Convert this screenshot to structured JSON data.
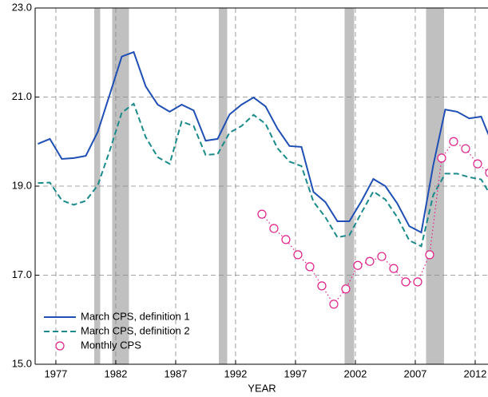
{
  "chart_data": {
    "type": "line",
    "xlabel": "YEAR",
    "xlim": [
      1975.27,
      2013.07
    ],
    "ylim": [
      15.0,
      23.0
    ],
    "xticks": [
      1977,
      1982,
      1987,
      1992,
      1997,
      2002,
      2007,
      2012
    ],
    "yticks": [
      {
        "value": 15.0,
        "label": "15.0"
      },
      {
        "value": 17.0,
        "label": "17.0"
      },
      {
        "value": 19.0,
        "label": "19.0"
      },
      {
        "value": 21.0,
        "label": "21.0"
      },
      {
        "value": 23.0,
        "label": "23.0"
      }
    ],
    "grid": true,
    "legend": "lower left",
    "shaded_periods": [
      [
        1980.2,
        1980.7
      ],
      [
        1981.7,
        1983.1
      ],
      [
        1990.6,
        1991.3
      ],
      [
        2001.1,
        2001.9
      ],
      [
        2007.9,
        2009.4
      ]
    ],
    "shade_color": "#c0c0c0",
    "series": [
      {
        "name": "March CPS, definition 1",
        "color": "#1f4fb4",
        "style": "solid",
        "marker": "none",
        "x": [
          1975.5,
          1976.5,
          1977.5,
          1978.5,
          1979.5,
          1980.5,
          1981.5,
          1982.5,
          1983.5,
          1984.5,
          1985.5,
          1986.5,
          1987.5,
          1988.5,
          1989.5,
          1990.5,
          1991.5,
          1992.5,
          1993.5,
          1994.5,
          1995.5,
          1996.5,
          1997.5,
          1998.5,
          1999.5,
          2000.5,
          2001.5,
          2002.5,
          2003.5,
          2004.5,
          2005.5,
          2006.5,
          2007.5,
          2008.5,
          2009.5,
          2010.5,
          2011.5,
          2012.5,
          2013.5
        ],
        "values": [
          19.95,
          20.06,
          19.61,
          19.63,
          19.68,
          20.22,
          21.06,
          21.91,
          22.01,
          21.24,
          20.83,
          20.67,
          20.83,
          20.7,
          20.02,
          20.06,
          20.61,
          20.83,
          20.99,
          20.79,
          20.29,
          19.9,
          19.88,
          18.87,
          18.64,
          18.21,
          18.21,
          18.66,
          19.16,
          19.0,
          18.61,
          18.1,
          17.96,
          19.47,
          20.72,
          20.67,
          20.52,
          20.56,
          19.9
        ]
      },
      {
        "name": "March CPS, definition 2",
        "color": "#1a8a8a",
        "style": "dashed",
        "marker": "none",
        "x": [
          1975.5,
          1976.5,
          1977.5,
          1978.5,
          1979.5,
          1980.5,
          1981.5,
          1982.5,
          1983.5,
          1984.5,
          1985.5,
          1986.5,
          1987.5,
          1988.5,
          1989.5,
          1990.5,
          1991.5,
          1992.5,
          1993.5,
          1994.5,
          1995.5,
          1996.5,
          1997.5,
          1998.5,
          1999.5,
          2000.5,
          2001.5,
          2002.5,
          2003.5,
          2004.5,
          2005.5,
          2006.5,
          2007.5,
          2008.5,
          2009.5,
          2010.5,
          2011.5,
          2012.5,
          2013.5
        ],
        "values": [
          19.07,
          19.08,
          18.68,
          18.58,
          18.67,
          19.02,
          19.8,
          20.65,
          20.85,
          20.1,
          19.65,
          19.5,
          20.45,
          20.35,
          19.7,
          19.72,
          20.2,
          20.35,
          20.6,
          20.4,
          19.85,
          19.55,
          19.45,
          18.65,
          18.3,
          17.85,
          17.9,
          18.4,
          18.88,
          18.7,
          18.3,
          17.78,
          17.65,
          18.8,
          19.28,
          19.28,
          19.2,
          19.15,
          18.7
        ]
      },
      {
        "name": "Monthly CPS",
        "color": "#e0208c",
        "style": "dotted",
        "marker": "circle",
        "x": [
          1994.2,
          1995.2,
          1996.2,
          1997.2,
          1998.2,
          1999.2,
          2000.2,
          2001.2,
          2002.2,
          2003.2,
          2004.2,
          2005.2,
          2006.2,
          2007.2,
          2008.2,
          2009.2,
          2010.2,
          2011.2,
          2012.2,
          2013.2
        ],
        "values": [
          18.37,
          18.05,
          17.8,
          17.46,
          17.19,
          16.76,
          16.35,
          16.69,
          17.22,
          17.31,
          17.42,
          17.15,
          16.85,
          16.85,
          17.46,
          19.63,
          20.0,
          19.84,
          19.5,
          19.3
        ]
      }
    ]
  }
}
